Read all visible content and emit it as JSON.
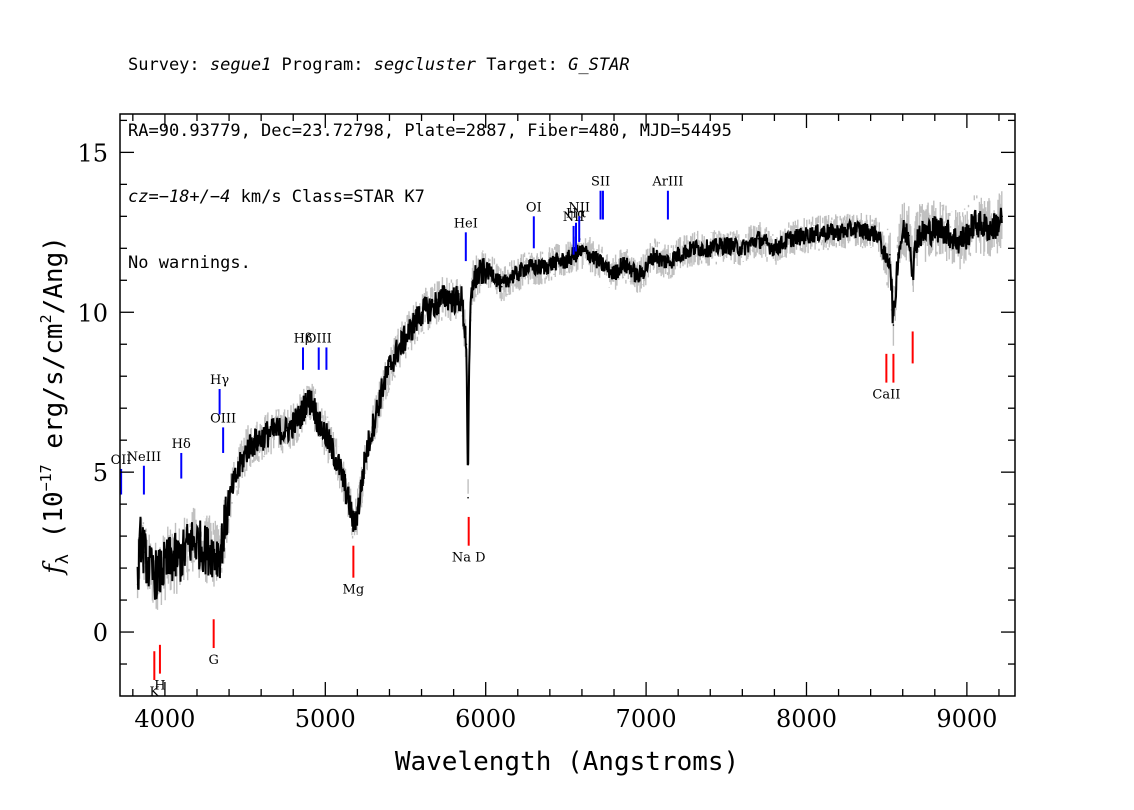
{
  "header": {
    "line1": {
      "survey_prefix": "Survey: ",
      "survey": "segue1",
      "program_prefix": " Program: ",
      "program": "segcluster",
      "target_prefix": " Target: ",
      "target": "G_STAR"
    },
    "line2": "RA=90.93779, Dec=23.72798, Plate=2887, Fiber=480, MJD=54495",
    "line3": {
      "cz_prefix": "cz=",
      "cz": "−18+/−4",
      "cz_suffix": " km/s Class=STAR K7"
    },
    "line4": "No warnings."
  },
  "chart_data": {
    "type": "line",
    "xlabel": "Wavelength (Angstroms)",
    "ylabel": "fλ (10⁻¹⁷ erg/s/cm²/Ang)",
    "xlim": [
      3720,
      9300
    ],
    "ylim": [
      -2,
      16.2
    ],
    "xticks": [
      4000,
      5000,
      6000,
      7000,
      8000,
      9000
    ],
    "yticks": [
      0,
      5,
      10,
      15
    ],
    "grid": false,
    "colors": {
      "flux": "#000000",
      "error": "#c0c0c0",
      "emission": "#0000ff",
      "absorption": "#ff0000"
    },
    "series": [
      {
        "x": [
          3830,
          3850,
          3870,
          3900,
          3930,
          3960,
          3990,
          4020,
          4060,
          4100,
          4150,
          4200,
          4250,
          4300,
          4340,
          4380,
          4420,
          4470,
          4520,
          4580,
          4640,
          4700,
          4760,
          4800,
          4850,
          4880,
          4920,
          4960,
          5000,
          5050,
          5100,
          5150,
          5180,
          5210,
          5250,
          5300,
          5350,
          5400,
          5450,
          5500,
          5550,
          5600,
          5650,
          5700,
          5750,
          5800,
          5850,
          5880,
          5890,
          5896,
          5905,
          5920,
          5960,
          6000,
          6050,
          6100,
          6150,
          6200,
          6250,
          6300,
          6350,
          6400,
          6450,
          6500,
          6550,
          6600,
          6650,
          6700,
          6750,
          6800,
          6850,
          6900,
          6950,
          7000,
          7050,
          7100,
          7150,
          7200,
          7300,
          7400,
          7500,
          7600,
          7700,
          7800,
          7900,
          8000,
          8100,
          8200,
          8300,
          8400,
          8450,
          8498,
          8520,
          8542,
          8570,
          8600,
          8640,
          8662,
          8690,
          8750,
          8800,
          8850,
          8900,
          8950,
          9000,
          9050,
          9100,
          9150,
          9200,
          9220
        ],
        "y": [
          1.5,
          3.0,
          2.5,
          2.0,
          1.8,
          1.8,
          2.0,
          2.2,
          2.3,
          2.3,
          2.8,
          2.8,
          2.6,
          2.5,
          2.4,
          3.5,
          4.5,
          5.2,
          5.8,
          6.0,
          6.2,
          6.3,
          6.3,
          6.5,
          6.8,
          7.2,
          7.2,
          6.5,
          6.2,
          5.6,
          5.0,
          4.0,
          3.3,
          4.0,
          5.5,
          6.5,
          7.5,
          8.3,
          8.8,
          9.2,
          9.6,
          10.0,
          10.1,
          10.3,
          10.5,
          10.4,
          10.4,
          9.0,
          4.2,
          8.0,
          10.0,
          11.0,
          11.2,
          11.3,
          11.2,
          10.8,
          11.1,
          11.2,
          11.4,
          11.4,
          11.4,
          11.5,
          11.6,
          11.6,
          11.8,
          11.9,
          11.8,
          11.6,
          11.4,
          11.2,
          11.5,
          11.4,
          11.1,
          11.4,
          11.8,
          11.6,
          11.6,
          11.8,
          12.0,
          12.0,
          12.1,
          12.0,
          12.3,
          12.0,
          12.3,
          12.4,
          12.5,
          12.5,
          12.6,
          12.5,
          12.4,
          11.6,
          11.8,
          9.6,
          11.8,
          12.5,
          12.4,
          11.3,
          12.4,
          12.5,
          12.6,
          12.6,
          12.4,
          12.2,
          12.4,
          12.8,
          12.7,
          12.6,
          12.8,
          13.0
        ]
      }
    ],
    "emission_lines": [
      {
        "label": "OII",
        "wavelength": 3727,
        "y_bottom": 4.3,
        "y_top": 5.1
      },
      {
        "label": "NeIII",
        "wavelength": 3869,
        "y_bottom": 4.3,
        "y_top": 5.2
      },
      {
        "label": "Hδ",
        "wavelength": 4102,
        "y_bottom": 4.8,
        "y_top": 5.6
      },
      {
        "label": "Hγ",
        "wavelength": 4341,
        "y_bottom": 6.8,
        "y_top": 7.6
      },
      {
        "label": "OIII",
        "wavelength": 4363,
        "y_bottom": 5.6,
        "y_top": 6.4
      },
      {
        "label": "Hβ",
        "wavelength": 4861,
        "y_bottom": 8.2,
        "y_top": 8.9
      },
      {
        "label": "OIII",
        "wavelength": 4959,
        "y_bottom": 8.2,
        "y_top": 8.9
      },
      {
        "label": "",
        "wavelength": 5007,
        "y_bottom": 8.2,
        "y_top": 8.9
      },
      {
        "label": "HeI",
        "wavelength": 5876,
        "y_bottom": 11.6,
        "y_top": 12.5
      },
      {
        "label": "OI",
        "wavelength": 6300,
        "y_bottom": 12.0,
        "y_top": 13.0
      },
      {
        "label": "NII",
        "wavelength": 6548,
        "y_bottom": 11.8,
        "y_top": 12.7
      },
      {
        "label": "Hα",
        "wavelength": 6563,
        "y_bottom": 11.9,
        "y_top": 12.8
      },
      {
        "label": "NII",
        "wavelength": 6583,
        "y_bottom": 12.2,
        "y_top": 13.0
      },
      {
        "label": "SII",
        "wavelength": 6716,
        "y_bottom": 12.9,
        "y_top": 13.8
      },
      {
        "label": "",
        "wavelength": 6731,
        "y_bottom": 12.9,
        "y_top": 13.8
      },
      {
        "label": "ArIII",
        "wavelength": 7136,
        "y_bottom": 12.9,
        "y_top": 13.8
      }
    ],
    "absorption_lines": [
      {
        "label": "K",
        "wavelength": 3934,
        "y_bottom": -1.5,
        "y_top": -0.6
      },
      {
        "label": "H",
        "wavelength": 3969,
        "y_bottom": -1.3,
        "y_top": -0.4
      },
      {
        "label": "G",
        "wavelength": 4304,
        "y_bottom": -0.5,
        "y_top": 0.4
      },
      {
        "label": "Mg",
        "wavelength": 5175,
        "y_bottom": 1.7,
        "y_top": 2.7
      },
      {
        "label": "Na D",
        "wavelength": 5894,
        "y_bottom": 2.7,
        "y_top": 3.6
      },
      {
        "label": "CaII",
        "wavelength": 8498,
        "y_bottom": 7.8,
        "y_top": 8.7
      },
      {
        "label": "",
        "wavelength": 8542,
        "y_bottom": 7.8,
        "y_top": 8.7
      },
      {
        "label": "",
        "wavelength": 8662,
        "y_bottom": 8.4,
        "y_top": 9.4
      }
    ]
  }
}
